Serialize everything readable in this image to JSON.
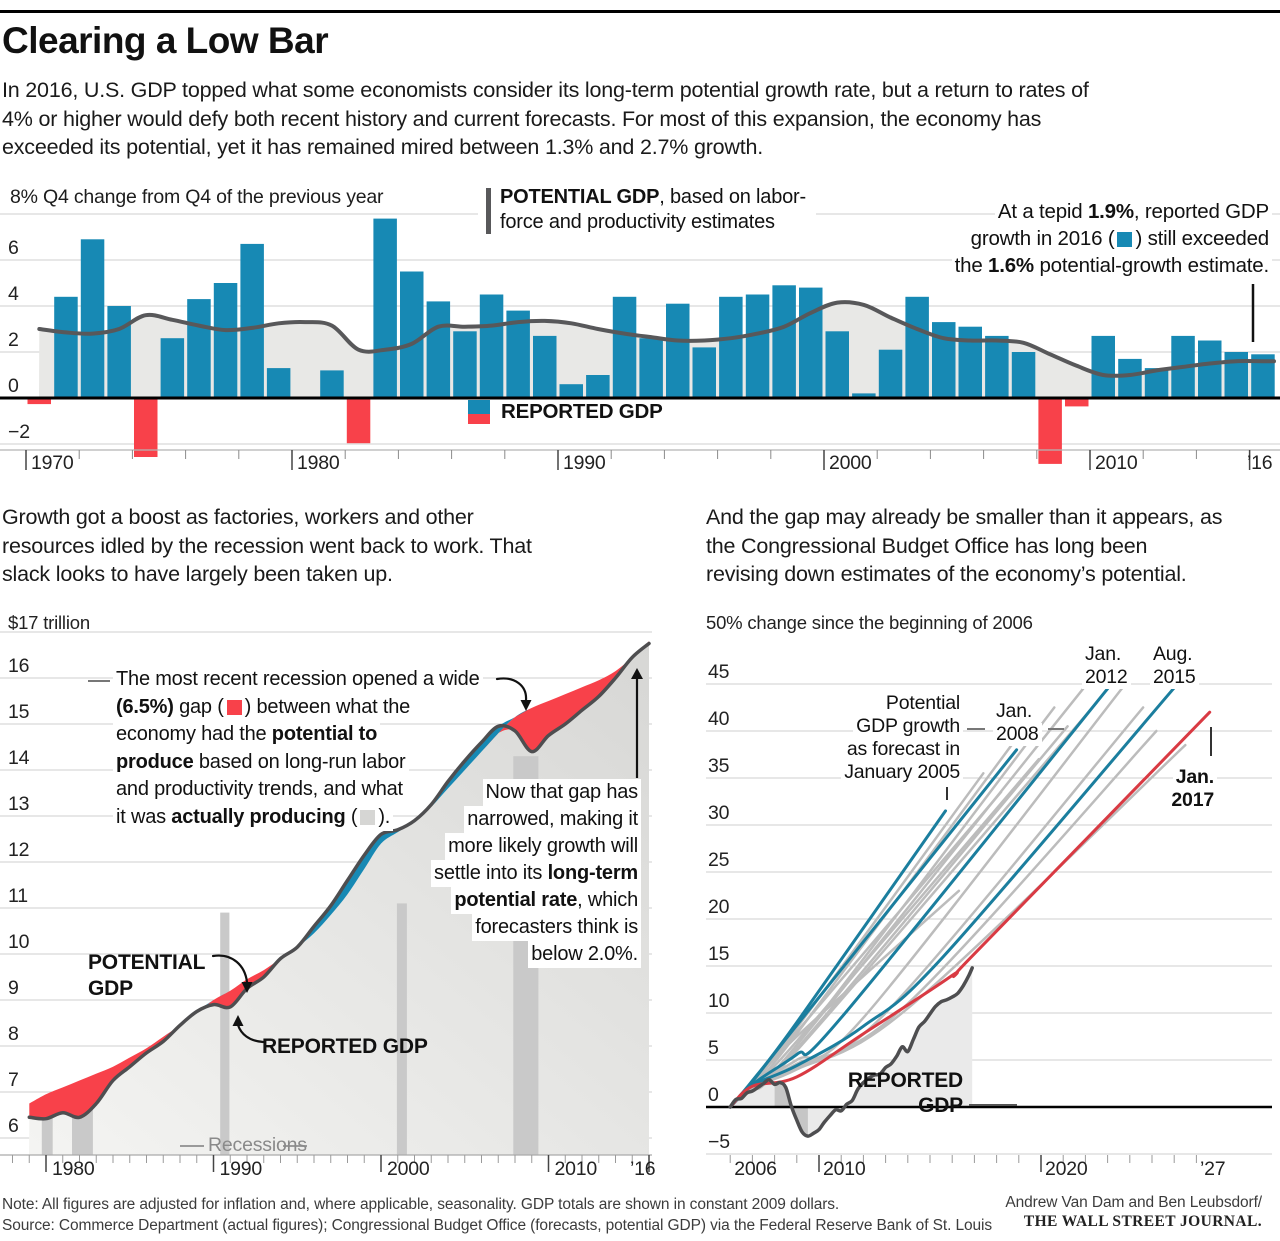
{
  "page": {
    "title": "Clearing a Low Bar",
    "intro_lines": [
      "In 2016, U.S. GDP topped what some economists consider its long-term potential growth rate, but a return to rates of",
      "4% or higher would defy both recent history and current forecasts. For most of this expansion, the economy has",
      "exceeded its potential, yet it has remained mired between 1.3% and 2.7% growth."
    ]
  },
  "sections": {
    "left_lines": [
      "Growth got a boost as factories, workers and other",
      "resources idled by the recession went back to work. That",
      "slack looks to have largely been taken up."
    ],
    "right_lines": [
      "And the gap may already be smaller than it appears, as",
      "the Congressional Budget Office has long been",
      "revising down estimates of the economy’s potential."
    ]
  },
  "footer": {
    "note": "Note: All figures are adjusted for inflation and, where applicable, seasonality. GDP totals are shown in constant 2009 dollars.",
    "source": "Source: Commerce Department (actual figures); Congressional Budget Office (forecasts, potential GDP) via the Federal Reserve Bank of St. Louis",
    "credit1": "Andrew Van Dam and Ben Leubsdorf/",
    "credit2": "THE WALL STREET JOURNAL."
  },
  "colors": {
    "blue": "#1789b4",
    "red": "#f8414a",
    "red_line": "#d93a43",
    "teal": "#1b7e9e",
    "gray_fc": "#bcbcbc",
    "dark": "#4e4e50",
    "area_light": "#e8e8e6",
    "area_right": "#eaeaea",
    "recession": "#c9c9c9",
    "recession_right": "#c6c6c6",
    "grid": "#cfcfcf",
    "gray_swatch": "#d6d6d4"
  },
  "chart_data": [
    {
      "id": "gdp-growth-bars",
      "type": "bar",
      "title": "8% Q4 change from Q4 of the previous year",
      "ylabel": "",
      "xlabel": "",
      "ylim": [
        -2.9,
        8
      ],
      "y_ticks": [
        [
          "6",
          6
        ],
        [
          "4",
          4
        ],
        [
          "2",
          2
        ],
        [
          "0",
          0
        ],
        [
          "−2",
          -2
        ]
      ],
      "x_tick_labels": [
        "1970",
        "1980",
        "1990",
        "2000",
        "2010",
        "’16"
      ],
      "years_start": 1970,
      "reported": [
        -0.2,
        4.4,
        6.9,
        4.0,
        -2.5,
        2.6,
        4.3,
        5.0,
        6.7,
        1.3,
        0.0,
        1.2,
        -1.9,
        7.8,
        5.5,
        4.2,
        2.9,
        4.5,
        3.8,
        2.7,
        0.6,
        1.0,
        4.4,
        2.6,
        4.1,
        2.2,
        4.4,
        4.5,
        4.9,
        4.8,
        2.9,
        0.2,
        2.1,
        4.4,
        3.3,
        3.1,
        2.7,
        2.0,
        -2.8,
        -0.3,
        2.7,
        1.7,
        1.3,
        2.7,
        2.5,
        2.0,
        1.9
      ],
      "potential": [
        3.0,
        2.85,
        2.8,
        3.0,
        3.6,
        3.4,
        3.15,
        2.95,
        3.05,
        3.25,
        3.3,
        3.15,
        2.1,
        2.1,
        2.35,
        3.1,
        3.1,
        3.15,
        3.3,
        3.35,
        3.25,
        3.0,
        2.8,
        2.65,
        2.5,
        2.5,
        2.6,
        2.8,
        3.1,
        3.7,
        4.15,
        4.05,
        3.5,
        3.0,
        2.6,
        2.5,
        2.5,
        2.4,
        1.9,
        1.4,
        1.0,
        1.0,
        1.2,
        1.35,
        1.5,
        1.6,
        1.6
      ],
      "legend_potential_lines": [
        [
          {
            "t": "POTENTIAL GDP",
            "b": true
          },
          {
            "t": ", based on labor-"
          }
        ],
        [
          {
            "t": "force and productivity estimates"
          }
        ]
      ],
      "legend_reported": "REPORTED GDP",
      "annotation_lines": [
        [
          {
            "t": "At a tepid "
          },
          {
            "t": "1.9%",
            "b": true
          },
          {
            "t": ", reported GDP"
          }
        ],
        [
          {
            "t": "growth in 2016 ("
          },
          {
            "sw": "blue"
          },
          {
            "t": ") still exceeded"
          }
        ],
        [
          {
            "t": "the "
          },
          {
            "t": "1.6%",
            "b": true
          },
          {
            "t": " potential-growth estimate."
          }
        ]
      ]
    },
    {
      "id": "gdp-level",
      "type": "area",
      "unit_label": "$17 trillion",
      "ylim": [
        6,
        17
      ],
      "y_ticks": [
        16,
        15,
        14,
        13,
        12,
        11,
        10,
        9,
        8,
        7,
        6
      ],
      "x_tick_labels": [
        "1980",
        "1990",
        "2000",
        "2010",
        "’16"
      ],
      "years_start": 1979,
      "reported": [
        6.45,
        6.42,
        6.55,
        6.45,
        6.75,
        7.25,
        7.55,
        7.85,
        8.1,
        8.45,
        8.75,
        8.9,
        8.85,
        9.25,
        9.5,
        9.9,
        10.15,
        10.6,
        11.05,
        11.6,
        12.15,
        12.6,
        12.7,
        12.9,
        13.25,
        13.75,
        14.2,
        14.6,
        14.95,
        14.85,
        14.4,
        14.75,
        15.0,
        15.3,
        15.6,
        16.0,
        16.45,
        16.75
      ],
      "potential": [
        6.75,
        6.95,
        7.1,
        7.25,
        7.4,
        7.55,
        7.75,
        7.95,
        8.2,
        8.45,
        8.72,
        9.0,
        9.2,
        9.45,
        9.65,
        9.9,
        10.15,
        10.45,
        10.85,
        11.3,
        11.85,
        12.4,
        12.65,
        12.88,
        13.2,
        13.6,
        14.0,
        14.4,
        14.8,
        15.15,
        15.35,
        15.5,
        15.65,
        15.8,
        15.95,
        16.15,
        16.45,
        16.8
      ],
      "recessions": [
        {
          "from": 1979.75,
          "to": 1980.4,
          "top": 6.55
        },
        {
          "from": 1981.55,
          "to": 1982.8,
          "top": 6.9
        },
        {
          "from": 1990.4,
          "to": 1990.95,
          "top": 10.9
        },
        {
          "from": 2000.95,
          "to": 2001.55,
          "top": 11.1
        },
        {
          "from": 2007.9,
          "to": 2009.4,
          "top": 14.3
        }
      ],
      "recessions_label": "Recessions",
      "potential_label_lines": [
        "POTENTIAL",
        "GDP"
      ],
      "reported_label": "REPORTED GDP",
      "annotation_gap_lines": [
        [
          {
            "t": "The most recent recession opened a wide"
          }
        ],
        [
          {
            "t": "(6.5%)",
            "b": true
          },
          {
            "t": " gap ("
          },
          {
            "sw": "red"
          },
          {
            "t": ") between what the"
          }
        ],
        [
          {
            "t": "economy had the "
          },
          {
            "t": "potential to",
            "b": true
          }
        ],
        [
          {
            "t": "produce",
            "b": true
          },
          {
            "t": " based on long-run labor"
          }
        ],
        [
          {
            "t": "and productivity trends, and what"
          }
        ],
        [
          {
            "t": "it was "
          },
          {
            "t": "actually producing",
            "b": true
          },
          {
            "t": " ("
          },
          {
            "sw": "gray_swatch"
          },
          {
            "t": ")."
          }
        ]
      ],
      "annotation_narrow_lines": [
        [
          {
            "t": "Now that gap has"
          }
        ],
        [
          {
            "t": "narrowed, making it"
          }
        ],
        [
          {
            "t": "more likely growth will"
          }
        ],
        [
          {
            "t": "settle into its "
          },
          {
            "t": "long-term",
            "b": true
          }
        ],
        [
          {
            "t": "potential rate",
            "b": true
          },
          {
            "t": ", which"
          }
        ],
        [
          {
            "t": "forecasters think is"
          }
        ],
        [
          {
            "t": "below 2.0%."
          }
        ]
      ]
    },
    {
      "id": "potential-forecasts",
      "type": "line",
      "unit_label": "50% change since the beginning of 2006",
      "ylim": [
        -5,
        50
      ],
      "y_ticks": [
        [
          "45",
          45
        ],
        [
          "40",
          40
        ],
        [
          "35",
          35
        ],
        [
          "30",
          30
        ],
        [
          "25",
          25
        ],
        [
          "20",
          20
        ],
        [
          "15",
          15
        ],
        [
          "10",
          10
        ],
        [
          "5",
          5
        ],
        [
          "0",
          0
        ],
        [
          "−5",
          -5
        ]
      ],
      "x_tick_labels": [
        "2006",
        "2010",
        "2020",
        "’27"
      ],
      "forecast_label_lines": [
        "Potential",
        "GDP growth",
        "as forecast in",
        "January 2005"
      ],
      "vintage_labels": {
        "jan2008": [
          "Jan.",
          "2008"
        ],
        "jan2012": [
          "Jan.",
          "2012"
        ],
        "aug2015": [
          "Aug.",
          "2015"
        ],
        "jan2017": [
          "Jan.",
          "2017"
        ]
      },
      "reported_label_lines": [
        "REPORTED",
        "GDP"
      ],
      "reported": [
        [
          2006,
          0
        ],
        [
          2006.25,
          0.8
        ],
        [
          2006.5,
          0.9
        ],
        [
          2006.75,
          1.5
        ],
        [
          2007,
          1.7
        ],
        [
          2007.25,
          2.1
        ],
        [
          2007.5,
          2.5
        ],
        [
          2007.75,
          2.9
        ],
        [
          2008,
          2.4
        ],
        [
          2008.25,
          2.6
        ],
        [
          2008.5,
          2.1
        ],
        [
          2008.75,
          0.1
        ],
        [
          2009,
          -1.4
        ],
        [
          2009.25,
          -2.7
        ],
        [
          2009.5,
          -3.1
        ],
        [
          2009.75,
          -2.8
        ],
        [
          2010,
          -2.4
        ],
        [
          2010.25,
          -1.6
        ],
        [
          2010.5,
          -0.9
        ],
        [
          2010.75,
          -0.3
        ],
        [
          2011,
          -0.4
        ],
        [
          2011.25,
          0.3
        ],
        [
          2011.5,
          0.7
        ],
        [
          2011.75,
          1.9
        ],
        [
          2012,
          2.6
        ],
        [
          2012.25,
          3.1
        ],
        [
          2012.5,
          3.4
        ],
        [
          2012.75,
          3.5
        ],
        [
          2013,
          4.2
        ],
        [
          2013.25,
          4.6
        ],
        [
          2013.5,
          5.4
        ],
        [
          2013.75,
          6.4
        ],
        [
          2014,
          5.9
        ],
        [
          2014.25,
          7.2
        ],
        [
          2014.5,
          8.5
        ],
        [
          2014.75,
          9.1
        ],
        [
          2015,
          9.9
        ],
        [
          2015.25,
          10.7
        ],
        [
          2015.5,
          11.2
        ],
        [
          2015.75,
          11.4
        ],
        [
          2016,
          11.7
        ],
        [
          2016.25,
          12.1
        ],
        [
          2016.5,
          12.9
        ],
        [
          2016.75,
          14.0
        ],
        [
          2016.9,
          14.8
        ]
      ],
      "recession_band": {
        "from": 2008.0,
        "to": 2009.5
      },
      "forecasts": [
        {
          "label": "",
          "color": "gray",
          "points": [
            [
              2006,
              0
            ],
            [
              2007,
              2.3
            ],
            [
              2009,
              7.5
            ],
            [
              2016.3,
              23.0
            ]
          ]
        },
        {
          "label": "",
          "color": "gray",
          "points": [
            [
              2006,
              0
            ],
            [
              2007,
              2.6
            ],
            [
              2009,
              8.4
            ],
            [
              2017.4,
              35.5
            ]
          ]
        },
        {
          "label": "",
          "color": "gray",
          "points": [
            [
              2006,
              0
            ],
            [
              2007,
              2.5
            ],
            [
              2009,
              8.0
            ],
            [
              2018.2,
              33.5
            ]
          ]
        },
        {
          "label": "",
          "color": "gray",
          "points": [
            [
              2006,
              0
            ],
            [
              2007,
              2.4
            ],
            [
              2009,
              7.8
            ],
            [
              2019.3,
              40.5
            ]
          ]
        },
        {
          "label": "",
          "color": "gray",
          "points": [
            [
              2006,
              0
            ],
            [
              2007,
              2.3
            ],
            [
              2009,
              7.0
            ],
            [
              2019.9,
              37.0
            ]
          ]
        },
        {
          "label": "",
          "color": "gray",
          "points": [
            [
              2006,
              0
            ],
            [
              2007,
              2.2
            ],
            [
              2009,
              6.6
            ],
            [
              2020.6,
              42.5
            ]
          ]
        },
        {
          "label": "",
          "color": "gray",
          "points": [
            [
              2006,
              0
            ],
            [
              2007,
              2.2
            ],
            [
              2009,
              6.2
            ],
            [
              2021.2,
              40.5
            ]
          ]
        },
        {
          "label": "",
          "color": "gray",
          "points": [
            [
              2006,
              0
            ],
            [
              2007,
              2.3
            ],
            [
              2009,
              6.6
            ],
            [
              2021.9,
              44.5
            ]
          ]
        },
        {
          "label": "",
          "color": "gray",
          "points": [
            [
              2006,
              0
            ],
            [
              2007,
              2.2
            ],
            [
              2009,
              6.0
            ],
            [
              2022.5,
              43.0
            ]
          ]
        },
        {
          "label": "",
          "color": "gray",
          "points": [
            [
              2006,
              0
            ],
            [
              2007,
              2.2
            ],
            [
              2009,
              5.0
            ],
            [
              2012,
              9.5
            ],
            [
              2023.8,
              45.0
            ]
          ]
        },
        {
          "label": "",
          "color": "gray",
          "points": [
            [
              2006,
              0
            ],
            [
              2007,
              2.2
            ],
            [
              2009,
              4.6
            ],
            [
              2013,
              10.0
            ],
            [
              2024.6,
              42.5
            ]
          ]
        },
        {
          "label": "",
          "color": "gray",
          "points": [
            [
              2006,
              0
            ],
            [
              2007,
              2.1
            ],
            [
              2009,
              4.2
            ],
            [
              2014,
              11.0
            ],
            [
              2025.2,
              40.0
            ]
          ]
        },
        {
          "label": "",
          "color": "gray",
          "points": [
            [
              2006,
              0
            ],
            [
              2007,
              2.1
            ],
            [
              2009,
              4.0
            ],
            [
              2014,
              10.5
            ],
            [
              2026.5,
              38.5
            ]
          ]
        },
        {
          "label": "Jan. 2005",
          "color": "teal",
          "points": [
            [
              2006,
              0
            ],
            [
              2007,
              2.8
            ],
            [
              2009,
              9.0
            ],
            [
              2015.7,
              31.5
            ]
          ]
        },
        {
          "label": "Jan. 2008",
          "color": "teal",
          "points": [
            [
              2006,
              0
            ],
            [
              2007,
              2.7
            ],
            [
              2009,
              8.7
            ],
            [
              2018.9,
              38.0
            ]
          ]
        },
        {
          "label": "Jan. 2012",
          "color": "teal",
          "points": [
            [
              2006,
              0
            ],
            [
              2007,
              2.4
            ],
            [
              2009,
              5.6
            ],
            [
              2011,
              9.5
            ],
            [
              2023,
              44.5
            ]
          ]
        },
        {
          "label": "Aug. 2015",
          "color": "teal",
          "points": [
            [
              2006,
              0
            ],
            [
              2007,
              2.3
            ],
            [
              2009,
              4.4
            ],
            [
              2012,
              8.6
            ],
            [
              2015.6,
              16.0
            ],
            [
              2026,
              44.6
            ]
          ]
        },
        {
          "label": "Jan. 2017",
          "color": "red",
          "points": [
            [
              2006,
              0
            ],
            [
              2007,
              2.2
            ],
            [
              2009,
              3.2
            ],
            [
              2012,
              7.8
            ],
            [
              2016,
              14.0
            ],
            [
              2017,
              16.3
            ],
            [
              2027.6,
              42.0
            ]
          ]
        }
      ]
    }
  ]
}
